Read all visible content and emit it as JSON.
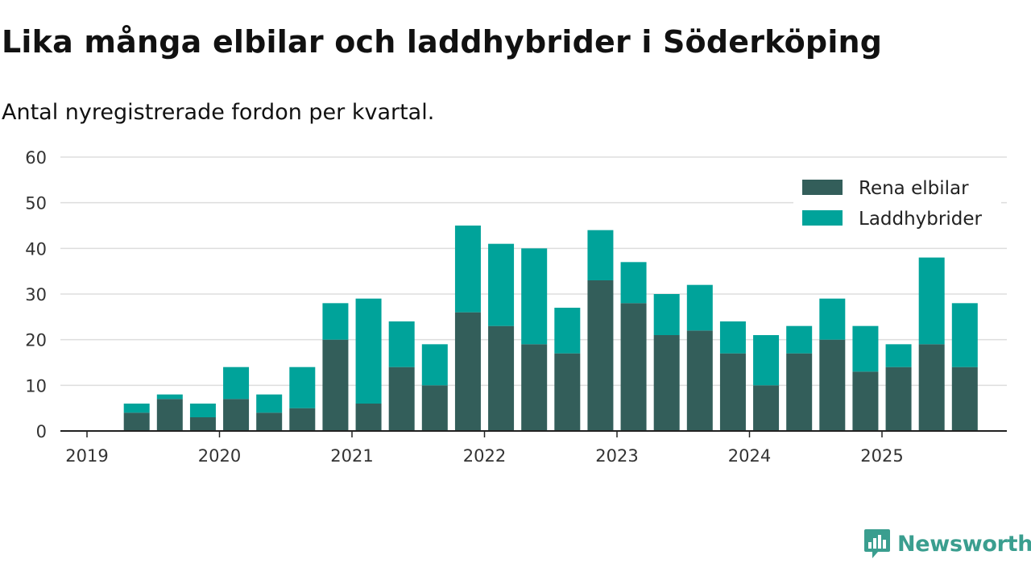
{
  "title": "Lika många elbilar och laddhybrider i Söderköping",
  "subtitle": "Antal nyregistrerade fordon per kvartal.",
  "colors": {
    "elbilar": "#335e5a",
    "laddhybrider": "#00a39a",
    "brand": "#3a9e8f",
    "grid": "#dddddd",
    "axis": "#222222"
  },
  "brand": {
    "name": "Newsworthy"
  },
  "chart_data": {
    "type": "bar",
    "stacked": true,
    "title": "Lika många elbilar och laddhybrider i Söderköping",
    "subtitle": "Antal nyregistrerade fordon per kvartal.",
    "categories": [
      "2019 Q2",
      "2019 Q3",
      "2019 Q4",
      "2020 Q1",
      "2020 Q2",
      "2020 Q3",
      "2020 Q4",
      "2021 Q1",
      "2021 Q2",
      "2021 Q3",
      "2021 Q4",
      "2022 Q1",
      "2022 Q2",
      "2022 Q3",
      "2022 Q4",
      "2023 Q1",
      "2023 Q2",
      "2023 Q3",
      "2023 Q4",
      "2024 Q1",
      "2024 Q2",
      "2024 Q3",
      "2024 Q4",
      "2025 Q1",
      "2025 Q2",
      "2025 Q3"
    ],
    "series": [
      {
        "name": "Rena elbilar",
        "color": "#335e5a",
        "values": [
          4,
          7,
          3,
          7,
          4,
          5,
          20,
          6,
          14,
          10,
          26,
          23,
          19,
          17,
          33,
          28,
          21,
          22,
          17,
          10,
          17,
          20,
          13,
          14,
          19,
          14
        ]
      },
      {
        "name": "Laddhybrider",
        "color": "#00a39a",
        "values": [
          2,
          1,
          3,
          7,
          4,
          9,
          8,
          23,
          10,
          9,
          19,
          18,
          21,
          10,
          11,
          9,
          9,
          10,
          7,
          11,
          6,
          9,
          10,
          5,
          19,
          14
        ]
      }
    ],
    "x_axis": {
      "labels": [
        "2019",
        "2020",
        "2021",
        "2022",
        "2023",
        "2024",
        "2025"
      ]
    },
    "y_axis": {
      "ticks": [
        0,
        10,
        20,
        30,
        40,
        50,
        60
      ]
    },
    "ylim": [
      0,
      60
    ],
    "grid": true,
    "legend": {
      "position": "top-right",
      "entries": [
        "Rena elbilar",
        "Laddhybrider"
      ]
    }
  }
}
